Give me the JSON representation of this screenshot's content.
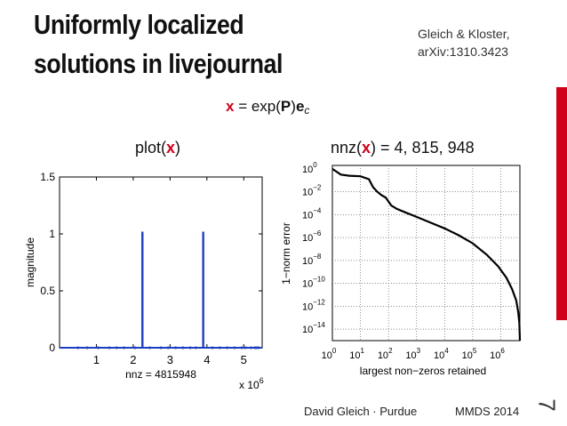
{
  "slide": {
    "title_line1": "Uniformly localized",
    "title_line2": "solutions in livejournal",
    "citation_line1": "Gleich & Kloster,",
    "citation_line2": "arXiv:1310.3423",
    "equation": {
      "x": "x",
      "eq": " = exp(",
      "P": "P",
      "mid": ")",
      "e": "e",
      "sub": "c"
    },
    "footer_author": "David Gleich · Purdue",
    "footer_venue": "MMDS 2014",
    "slide_number": "7",
    "accent_color": "#d0021b"
  },
  "chart_data": [
    {
      "type": "scatter",
      "title_prefix": "plot(",
      "title_var": "x",
      "title_suffix": ")",
      "ylabel": "magnitude",
      "xlabel": "nnz = 4815948",
      "x_exponent_label": "x 10",
      "x_exponent": "6",
      "xlim": [
        0,
        5.5
      ],
      "ylim": [
        0,
        1.5
      ],
      "xticks": [
        1,
        2,
        3,
        4,
        5
      ],
      "yticks": [
        0,
        0.5,
        1,
        1.5
      ],
      "ytick_labels": [
        "0",
        "0.5",
        "1",
        "1.5"
      ],
      "color": "#1f3fbf",
      "spikes": [
        {
          "x": 2.25,
          "y": 1.02
        },
        {
          "x": 3.9,
          "y": 1.02
        }
      ],
      "baseline_dots_x": [
        0.5,
        0.75,
        1.05,
        1.35,
        1.55,
        1.75,
        2.05,
        2.45,
        2.75,
        2.95,
        3.15,
        3.35,
        3.55,
        3.7,
        4.15,
        4.35,
        4.55,
        4.75,
        4.95,
        5.05,
        5.2,
        5.3,
        5.35,
        5.4
      ]
    },
    {
      "type": "line",
      "title_prefix": "nnz(",
      "title_var": "x",
      "title_suffix": ") = 4, 815, 948",
      "ylabel": "1−norm error",
      "xlabel": "largest non−zeros retained",
      "log_x": true,
      "log_y": true,
      "grid": true,
      "xlim_exp": [
        0,
        6.68
      ],
      "ylim_exp": [
        -15,
        0.3
      ],
      "xtick_exps": [
        "0",
        "1",
        "2",
        "3",
        "4",
        "5",
        "6"
      ],
      "ytick_exps": [
        "0",
        "−2",
        "−4",
        "−6",
        "−8",
        "−10",
        "−12",
        "−14"
      ],
      "color": "#000000",
      "series": [
        {
          "log10_x": [
            0,
            0.3,
            0.6,
            1.0,
            1.3,
            1.45,
            1.6,
            1.75,
            1.9,
            2.1,
            2.3,
            2.6,
            3.0,
            3.5,
            4.0,
            4.5,
            5.0,
            5.5,
            5.9,
            6.2,
            6.4,
            6.55,
            6.62,
            6.66,
            6.68
          ],
          "log10_y": [
            0,
            -0.5,
            -0.6,
            -0.65,
            -0.9,
            -1.6,
            -2.0,
            -2.3,
            -2.5,
            -3.2,
            -3.5,
            -3.8,
            -4.2,
            -4.7,
            -5.2,
            -5.8,
            -6.5,
            -7.5,
            -8.5,
            -9.5,
            -10.5,
            -11.5,
            -12.5,
            -13.5,
            -15
          ]
        }
      ]
    }
  ]
}
